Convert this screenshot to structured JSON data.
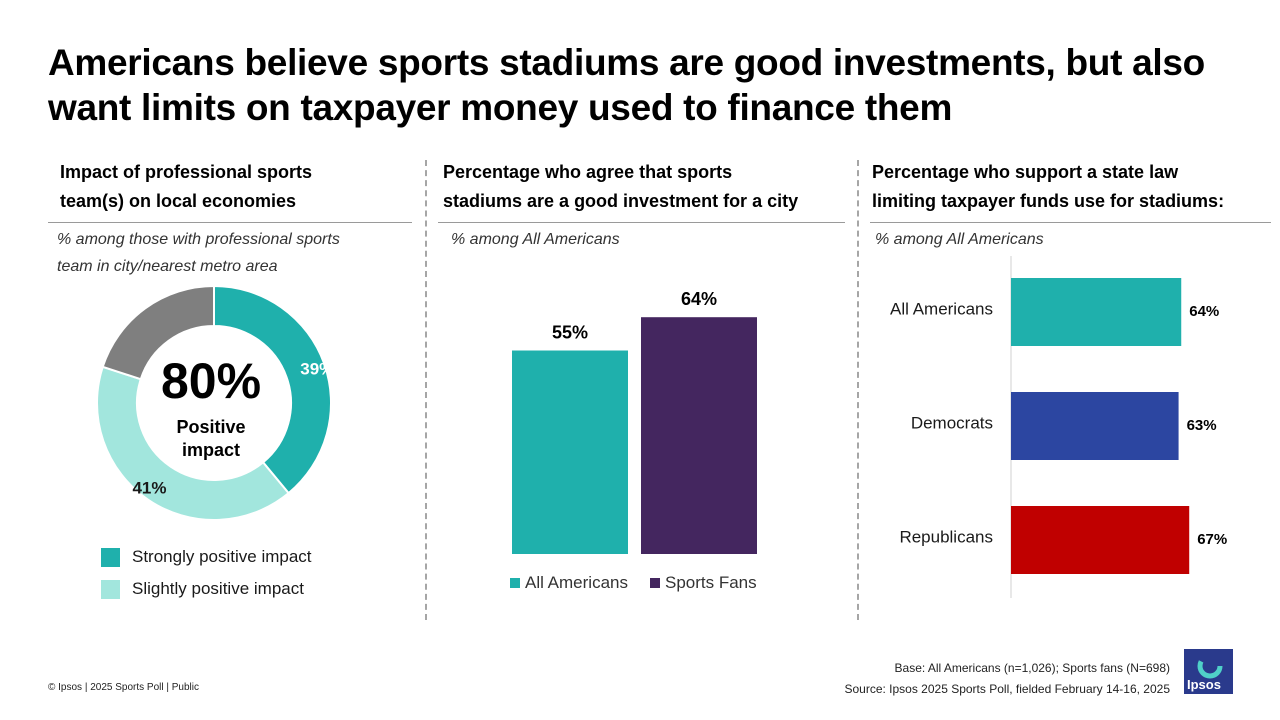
{
  "title": "Americans believe sports stadiums are good investments, but also want limits on taxpayer money used to finance them",
  "panels": [
    {
      "heading_lines": [
        "Impact of professional sports",
        "team(s) on local economies"
      ],
      "note_lines": [
        "% among those with professional sports",
        "team in city/nearest metro area"
      ]
    },
    {
      "heading_lines": [
        "Percentage who agree that sports",
        "stadiums are a good investment for a city"
      ],
      "note_lines": [
        "% among All Americans"
      ]
    },
    {
      "heading_lines": [
        "Percentage who support a state law",
        "limiting taxpayer funds use for stadiums:"
      ],
      "note_lines": [
        "% among All Americans"
      ]
    }
  ],
  "chart_data": [
    {
      "type": "pie",
      "labels": [
        "Strongly positive impact",
        "Slightly positive impact",
        ""
      ],
      "values": [
        39,
        41,
        20
      ],
      "value_labels": [
        "39%",
        "41%",
        ""
      ],
      "colors": [
        "#1fb0ac",
        "#a2e6dd",
        "#7f7f7f"
      ],
      "center_value": "80%",
      "center_label_lines": [
        "Positive",
        "impact"
      ],
      "legend": [
        {
          "label": "Strongly positive impact",
          "color": "#1fb0ac"
        },
        {
          "label": "Slightly positive impact",
          "color": "#a2e6dd"
        }
      ]
    },
    {
      "type": "bar",
      "categories": [
        "All Americans",
        "Sports Fans"
      ],
      "values": [
        55,
        64
      ],
      "value_labels": [
        "55%",
        "64%"
      ],
      "colors": [
        "#1fb0ac",
        "#44265f"
      ],
      "legend": [
        {
          "label": "All Americans",
          "color": "#1fb0ac"
        },
        {
          "label": "Sports Fans",
          "color": "#44265f"
        }
      ]
    },
    {
      "type": "bar",
      "orientation": "horizontal",
      "categories": [
        "All Americans",
        "Democrats",
        "Republicans"
      ],
      "values": [
        64,
        63,
        67
      ],
      "value_labels": [
        "64%",
        "63%",
        "67%"
      ],
      "colors": [
        "#1fb0ac",
        "#2c46a1",
        "#c00000"
      ]
    }
  ],
  "footer": {
    "left": "© Ipsos | 2025 Sports Poll | Public",
    "base": "Base: All Americans (n=1,026); Sports fans (N=698)",
    "source": "Source: Ipsos 2025 Sports Poll, fielded February 14-16, 2025",
    "logo_text": "Ipsos"
  }
}
